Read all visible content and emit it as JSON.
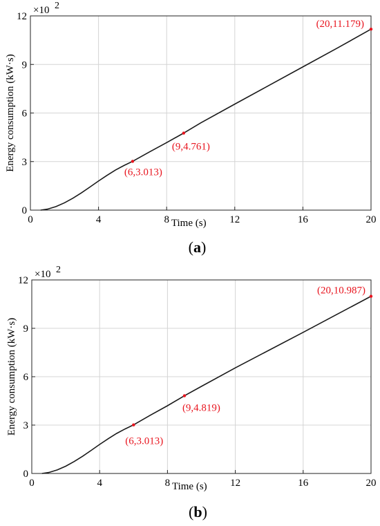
{
  "chart_data": [
    {
      "panel": "a",
      "type": "line",
      "xlabel": "Time (s)",
      "ylabel": "Energy consumption (kW·s)",
      "y_multiplier": "×10",
      "y_multiplier_exp": "2",
      "xlim": [
        0,
        20
      ],
      "ylim": [
        0,
        12
      ],
      "xticks": [
        0,
        4,
        8,
        12,
        16,
        20
      ],
      "yticks": [
        0,
        3,
        6,
        9,
        12
      ],
      "grid": true,
      "series": [
        {
          "x": [
            0.6,
            1,
            1.5,
            2,
            2.5,
            3,
            3.5,
            4,
            4.5,
            5,
            5.5,
            6,
            7,
            8,
            9,
            10,
            12,
            14,
            16,
            18,
            20
          ],
          "y": [
            0,
            0.06,
            0.22,
            0.45,
            0.74,
            1.07,
            1.43,
            1.8,
            2.15,
            2.48,
            2.76,
            3.013,
            3.6,
            4.17,
            4.761,
            5.39,
            6.55,
            7.7,
            8.85,
            10.0,
            11.179
          ]
        }
      ],
      "annotations": [
        {
          "x": 6,
          "y": 3.013,
          "text": "(6,3.013)"
        },
        {
          "x": 9,
          "y": 4.761,
          "text": "(9,4.761)"
        },
        {
          "x": 20,
          "y": 11.179,
          "text": "(20,11.179)"
        }
      ],
      "caption_open": "(",
      "caption_letter": "a",
      "caption_close": ")"
    },
    {
      "panel": "b",
      "type": "line",
      "xlabel": "Time (s)",
      "ylabel": "Energy consumption (kW·s)",
      "y_multiplier": "×10",
      "y_multiplier_exp": "2",
      "xlim": [
        0,
        20
      ],
      "ylim": [
        0,
        12
      ],
      "xticks": [
        0,
        4,
        8,
        12,
        16,
        20
      ],
      "yticks": [
        0,
        3,
        6,
        9,
        12
      ],
      "grid": true,
      "series": [
        {
          "x": [
            0.6,
            1,
            1.5,
            2,
            2.5,
            3,
            3.5,
            4,
            4.5,
            5,
            5.5,
            6,
            7,
            8,
            9,
            10,
            12,
            14,
            16,
            18,
            20
          ],
          "y": [
            0,
            0.06,
            0.22,
            0.45,
            0.74,
            1.07,
            1.43,
            1.8,
            2.15,
            2.48,
            2.76,
            3.013,
            3.62,
            4.2,
            4.819,
            5.4,
            6.55,
            7.65,
            8.75,
            9.87,
            10.987
          ]
        }
      ],
      "annotations": [
        {
          "x": 6,
          "y": 3.013,
          "text": "(6,3.013)"
        },
        {
          "x": 9,
          "y": 4.819,
          "text": "(9,4.819)"
        },
        {
          "x": 20,
          "y": 10.987,
          "text": "(20,10.987)"
        }
      ],
      "caption_open": "(",
      "caption_letter": "b",
      "caption_close": ")"
    }
  ]
}
